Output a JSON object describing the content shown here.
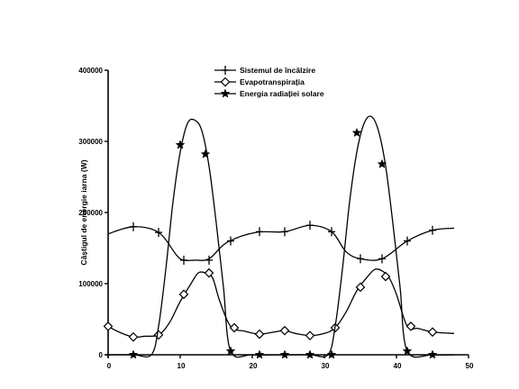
{
  "chart_data": {
    "type": "line",
    "xlabel": "",
    "ylabel": "Câștigul de energie iarna (W)",
    "xlim": [
      0,
      50
    ],
    "ylim": [
      0,
      400000
    ],
    "xticks": [
      0,
      10,
      20,
      30,
      40,
      50
    ],
    "yticks": [
      0,
      100000,
      200000,
      300000,
      400000
    ],
    "xtick_labels": [
      "0",
      "10",
      "20",
      "30",
      "40",
      "50"
    ],
    "ytick_labels": [
      "0",
      "100000",
      "200000",
      "300000",
      "400000"
    ],
    "grid": false,
    "legend_position": "top-center",
    "series": [
      {
        "name": "Sistemul de încălzire",
        "marker": "plus",
        "x": [
          0,
          3.5,
          7,
          9.5,
          10.5,
          12,
          14,
          16.5,
          20.5,
          24.5,
          28,
          31,
          33,
          35,
          38,
          41.5,
          45,
          48
        ],
        "y": [
          170000,
          180000,
          172000,
          140000,
          133000,
          133000,
          135000,
          158000,
          172000,
          173000,
          182000,
          173000,
          145000,
          135000,
          135000,
          160000,
          175000,
          178000
        ],
        "marker_x": [
          3.5,
          7,
          10.5,
          14,
          17,
          21,
          24.5,
          28,
          31,
          35,
          38,
          41.5,
          45
        ],
        "marker_y": [
          180000,
          172000,
          133000,
          133000,
          160000,
          173000,
          173000,
          182000,
          173000,
          135000,
          135000,
          160000,
          175000
        ]
      },
      {
        "name": "Evapotranspirația",
        "marker": "diamond",
        "x": [
          0,
          1.5,
          3.5,
          5,
          7,
          8.5,
          10,
          11.5,
          12.5,
          13.5,
          14.5,
          15.5,
          17,
          19,
          21,
          23,
          24.5,
          26,
          28,
          30,
          31.5,
          33,
          34.5,
          36,
          37,
          38,
          39,
          40,
          41.5,
          43,
          45,
          48
        ],
        "y": [
          40000,
          32000,
          25000,
          26000,
          28000,
          45000,
          75000,
          100000,
          115000,
          115000,
          108000,
          75000,
          40000,
          33000,
          29000,
          32000,
          34000,
          30000,
          27000,
          30000,
          38000,
          60000,
          90000,
          110000,
          120000,
          118000,
          108000,
          85000,
          40000,
          37000,
          32000,
          30000
        ],
        "marker_x": [
          0,
          3.5,
          7,
          10.5,
          14,
          17.5,
          21,
          24.5,
          28,
          31.5,
          35,
          38.5,
          42,
          45
        ],
        "marker_y": [
          40000,
          25000,
          28000,
          85000,
          115000,
          38000,
          29000,
          34000,
          27000,
          38000,
          95000,
          110000,
          40000,
          32000
        ]
      },
      {
        "name": "Energia radiației solare",
        "marker": "star",
        "x": [
          0,
          3.5,
          6,
          7,
          8,
          9,
          10,
          11,
          12,
          13,
          14,
          15,
          16,
          17,
          20,
          24,
          28,
          30.5,
          31.5,
          32.5,
          33.5,
          34.5,
          35.5,
          36.5,
          37.5,
          38.5,
          39.5,
          40.5,
          41.5,
          45,
          48
        ],
        "y": [
          0,
          0,
          0,
          40000,
          120000,
          215000,
          285000,
          325000,
          330000,
          315000,
          265000,
          185000,
          95000,
          5000,
          0,
          0,
          0,
          0,
          40000,
          120000,
          215000,
          285000,
          325000,
          335000,
          315000,
          265000,
          185000,
          95000,
          5000,
          0,
          0
        ],
        "marker_x": [
          3.5,
          10,
          13.5,
          17,
          21,
          24.5,
          28,
          31,
          34.5,
          38,
          41.5,
          45
        ],
        "marker_y": [
          0,
          295000,
          282000,
          5000,
          0,
          0,
          0,
          0,
          312000,
          268000,
          5000,
          0
        ]
      }
    ]
  }
}
